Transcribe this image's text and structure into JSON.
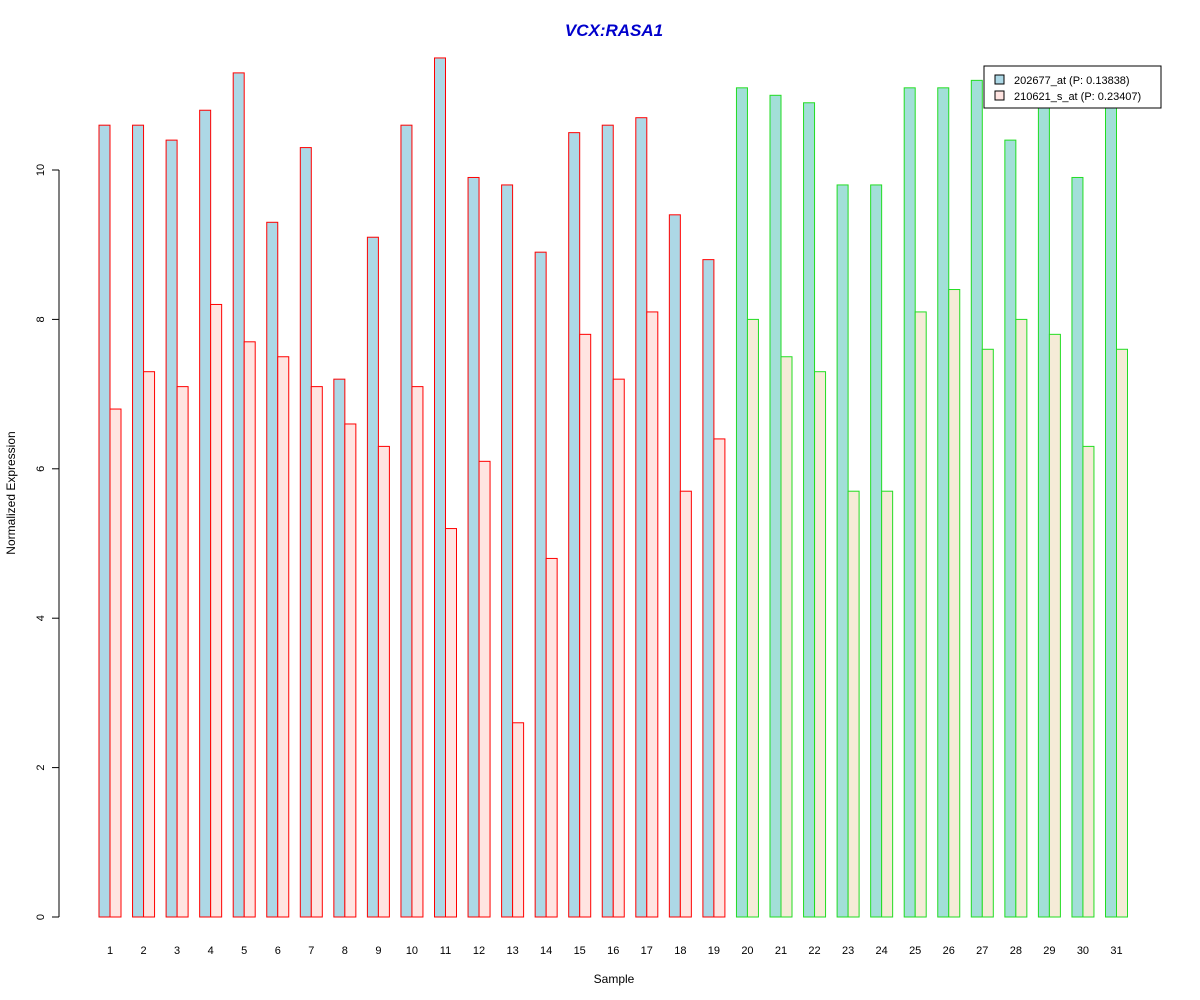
{
  "chart_data": {
    "type": "bar",
    "title": "VCX:RASA1",
    "xlabel": "Sample",
    "ylabel": "Normalized Expression",
    "ylim": [
      0,
      11.6
    ],
    "yticks": [
      "0",
      "2",
      "4",
      "6",
      "8",
      "10"
    ],
    "grid": false,
    "legend_position": "top-right",
    "categories": [
      "1",
      "2",
      "3",
      "4",
      "5",
      "6",
      "7",
      "8",
      "9",
      "10",
      "11",
      "12",
      "13",
      "14",
      "15",
      "16",
      "17",
      "18",
      "19",
      "20",
      "21",
      "22",
      "23",
      "24",
      "25",
      "26",
      "27",
      "28",
      "29",
      "30",
      "31"
    ],
    "group_a_count": 19,
    "series": [
      {
        "name": "202677_at (P: 0.13838)",
        "values": [
          10.6,
          10.6,
          10.4,
          10.8,
          11.3,
          9.3,
          10.3,
          7.2,
          9.1,
          10.6,
          11.5,
          9.9,
          9.8,
          8.9,
          10.5,
          10.6,
          10.7,
          9.4,
          8.8,
          11.1,
          11.0,
          10.9,
          9.8,
          9.8,
          11.1,
          11.1,
          11.2,
          10.4,
          10.9,
          9.9,
          10.9
        ],
        "colors": {
          "group_a_fill": "#add8e6",
          "group_b_fill": "#a2dfd8"
        }
      },
      {
        "name": "210621_s_at (P: 0.23407)",
        "values": [
          6.8,
          7.3,
          7.1,
          8.2,
          7.7,
          7.5,
          7.1,
          6.6,
          6.3,
          7.1,
          5.2,
          6.1,
          2.6,
          4.8,
          7.8,
          7.2,
          8.1,
          5.7,
          6.4,
          8.0,
          7.5,
          7.3,
          5.7,
          5.7,
          8.1,
          8.4,
          7.6,
          8.0,
          7.8,
          6.3,
          7.6
        ],
        "colors": {
          "group_a_fill": "#ffe4e1",
          "group_b_fill": "#f5ebd7"
        }
      }
    ],
    "colors": {
      "title": "#0000cc",
      "group_a_border": "#ff0000",
      "group_b_border": "#22dd22",
      "axis": "#000000",
      "legend_swatch_a": "#add8e6",
      "legend_swatch_b": "#ffe4e1"
    }
  }
}
